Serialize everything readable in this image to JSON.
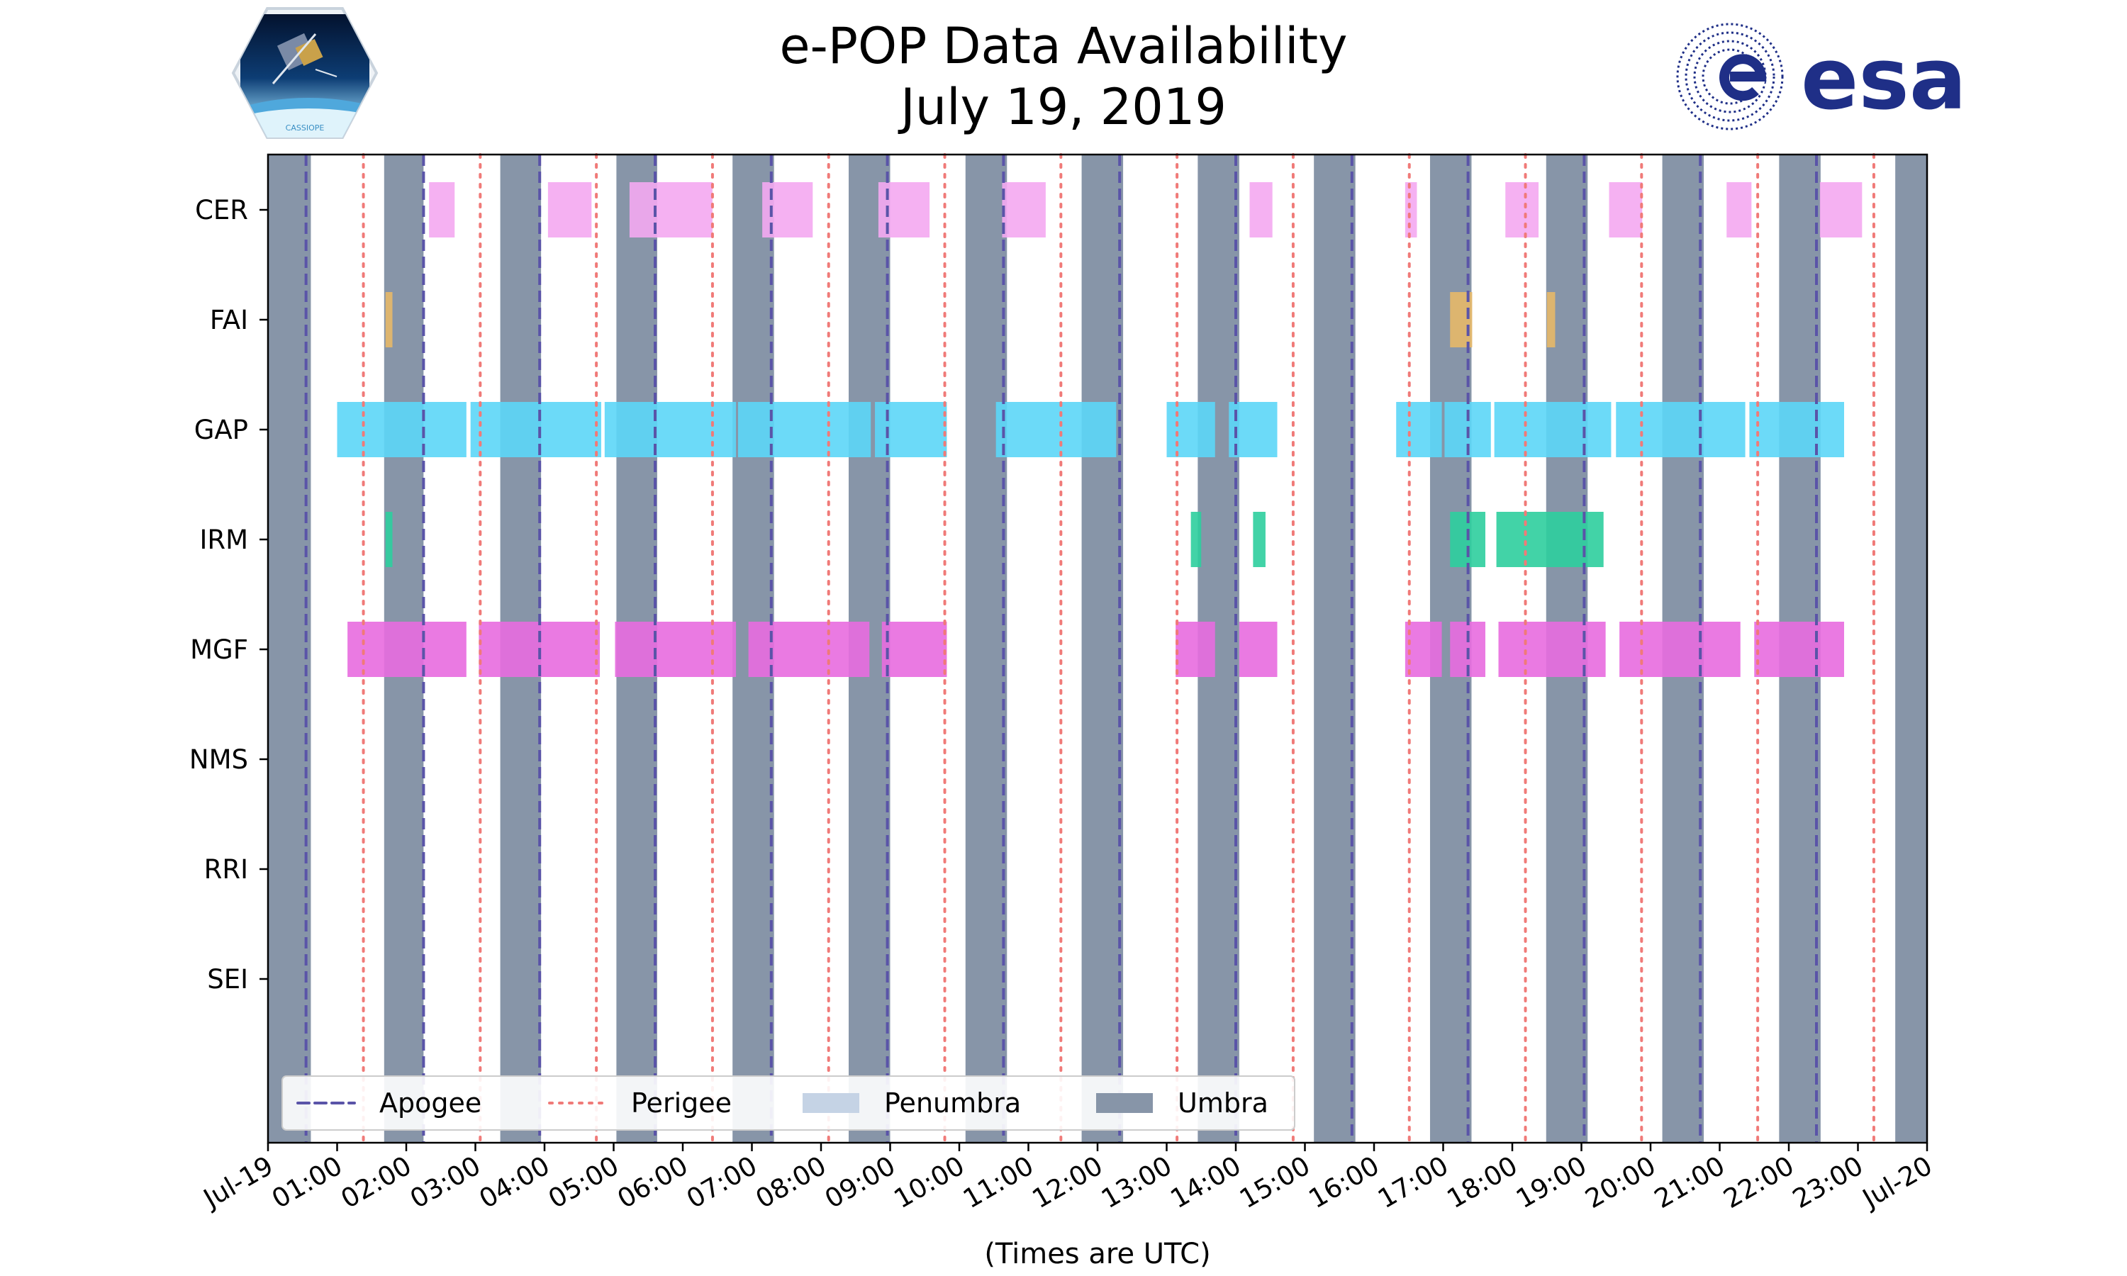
{
  "title": {
    "line1": "e-POP Data Availability",
    "line2": "July 19, 2019"
  },
  "logos": {
    "left_name": "cassiope-logo",
    "left_text": "CASSIOPE",
    "right_name": "esa-logo",
    "right_text": "esa"
  },
  "colors": {
    "umbra": "#8795a8",
    "penumbra": "#c5d3e5",
    "apogee": "#5a54a8",
    "perigee": "#f07a78",
    "CER": "#f4a9f1",
    "FAI": "#e7b868",
    "GAP": "#5cd6f7",
    "IRM": "#2dce9d",
    "MGF": "#e86cdf",
    "esa_blue": "#1f2f87",
    "frame": "#000000"
  },
  "chart_data": {
    "type": "timeline",
    "xlabel": "(Times are UTC)",
    "x_range_hours": [
      0,
      24
    ],
    "x_ticks": [
      {
        "h": 0,
        "label": "Jul-19"
      },
      {
        "h": 1,
        "label": "01:00"
      },
      {
        "h": 2,
        "label": "02:00"
      },
      {
        "h": 3,
        "label": "03:00"
      },
      {
        "h": 4,
        "label": "04:00"
      },
      {
        "h": 5,
        "label": "05:00"
      },
      {
        "h": 6,
        "label": "06:00"
      },
      {
        "h": 7,
        "label": "07:00"
      },
      {
        "h": 8,
        "label": "08:00"
      },
      {
        "h": 9,
        "label": "09:00"
      },
      {
        "h": 10,
        "label": "10:00"
      },
      {
        "h": 11,
        "label": "11:00"
      },
      {
        "h": 12,
        "label": "12:00"
      },
      {
        "h": 13,
        "label": "13:00"
      },
      {
        "h": 14,
        "label": "14:00"
      },
      {
        "h": 15,
        "label": "15:00"
      },
      {
        "h": 16,
        "label": "16:00"
      },
      {
        "h": 17,
        "label": "17:00"
      },
      {
        "h": 18,
        "label": "18:00"
      },
      {
        "h": 19,
        "label": "19:00"
      },
      {
        "h": 20,
        "label": "20:00"
      },
      {
        "h": 21,
        "label": "21:00"
      },
      {
        "h": 22,
        "label": "22:00"
      },
      {
        "h": 23,
        "label": "23:00"
      },
      {
        "h": 24,
        "label": "Jul-20"
      }
    ],
    "instruments": [
      "CER",
      "FAI",
      "GAP",
      "IRM",
      "MGF",
      "NMS",
      "RRI",
      "SEI"
    ],
    "umbra": [
      [
        0,
        0.62
      ],
      [
        1.68,
        2.25
      ],
      [
        3.36,
        3.95
      ],
      [
        5.04,
        5.63
      ],
      [
        6.72,
        7.32
      ],
      [
        8.4,
        9.0
      ],
      [
        10.09,
        10.69
      ],
      [
        11.77,
        12.37
      ],
      [
        13.45,
        14.05
      ],
      [
        15.13,
        15.73
      ],
      [
        16.81,
        17.41
      ],
      [
        18.49,
        19.09
      ],
      [
        20.17,
        20.77
      ],
      [
        21.86,
        22.46
      ],
      [
        23.54,
        24
      ]
    ],
    "apogee": [
      0.55,
      2.25,
      3.93,
      5.6,
      7.28,
      8.96,
      10.64,
      12.32,
      14.0,
      15.68,
      17.36,
      19.04,
      20.72,
      22.4
    ],
    "perigee": [
      1.38,
      3.07,
      4.75,
      6.43,
      8.11,
      9.79,
      11.47,
      13.15,
      14.83,
      16.51,
      18.19,
      19.87,
      21.55,
      23.23
    ],
    "availability": {
      "CER": [
        [
          2.33,
          2.7
        ],
        [
          4.05,
          4.68
        ],
        [
          5.23,
          6.43
        ],
        [
          7.15,
          7.88
        ],
        [
          8.83,
          9.57
        ],
        [
          10.62,
          11.25
        ],
        [
          14.2,
          14.53
        ],
        [
          16.45,
          16.62
        ],
        [
          17.9,
          18.38
        ],
        [
          19.4,
          19.88
        ],
        [
          21.1,
          21.46
        ],
        [
          22.45,
          23.06
        ]
      ],
      "FAI": [
        [
          1.7,
          1.8
        ],
        [
          17.1,
          17.42
        ],
        [
          18.5,
          18.62
        ]
      ],
      "GAP": [
        [
          1.0,
          2.87
        ],
        [
          2.93,
          4.82
        ],
        [
          4.87,
          6.77
        ],
        [
          6.8,
          8.72
        ],
        [
          8.78,
          9.82
        ],
        [
          10.53,
          12.27
        ],
        [
          13.0,
          13.7
        ],
        [
          13.9,
          14.6
        ],
        [
          16.32,
          16.98
        ],
        [
          17.02,
          17.69
        ],
        [
          17.74,
          19.43
        ],
        [
          19.5,
          21.37
        ],
        [
          21.43,
          22.8
        ]
      ],
      "IRM": [
        [
          1.7,
          1.8
        ],
        [
          13.35,
          13.5
        ],
        [
          14.25,
          14.43
        ],
        [
          17.1,
          17.61
        ],
        [
          17.77,
          19.32
        ]
      ],
      "MGF": [
        [
          1.15,
          2.87
        ],
        [
          3.05,
          4.8
        ],
        [
          5.02,
          6.77
        ],
        [
          6.95,
          8.7
        ],
        [
          8.88,
          9.82
        ],
        [
          13.13,
          13.7
        ],
        [
          14.05,
          14.6
        ],
        [
          16.45,
          16.98
        ],
        [
          17.1,
          17.61
        ],
        [
          17.8,
          19.35
        ],
        [
          19.55,
          21.3
        ],
        [
          21.5,
          22.8
        ]
      ],
      "NMS": [],
      "RRI": [],
      "SEI": []
    },
    "legend": {
      "position": "lower-left",
      "items": [
        {
          "label": "Apogee",
          "kind": "dashed",
          "color_key": "apogee"
        },
        {
          "label": "Perigee",
          "kind": "dotted",
          "color_key": "perigee"
        },
        {
          "label": "Penumbra",
          "kind": "patch",
          "color_key": "penumbra"
        },
        {
          "label": "Umbra",
          "kind": "patch",
          "color_key": "umbra"
        }
      ]
    }
  }
}
